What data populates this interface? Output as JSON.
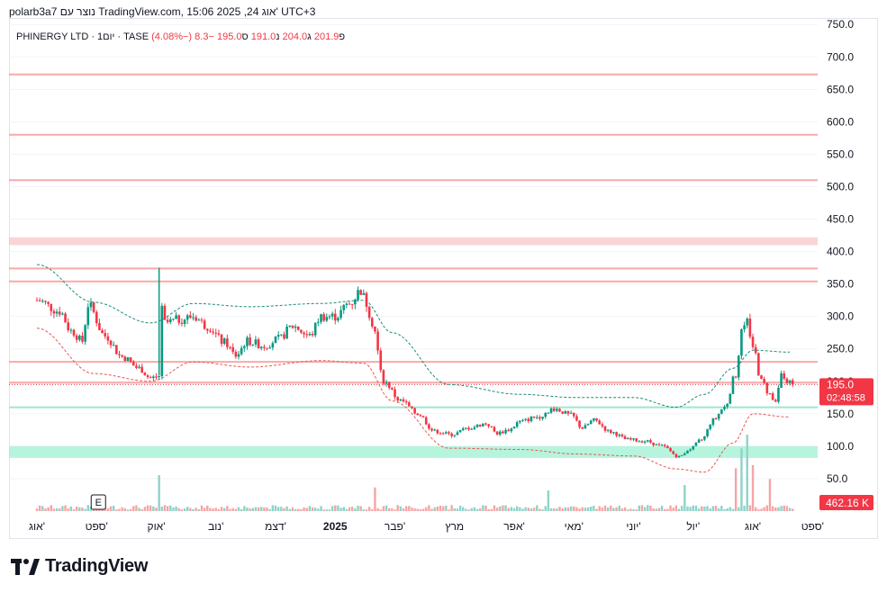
{
  "header": {
    "text": "polarb3a7 נוצר עם TradingView.com, 15:06 2025 ,24 אוג' UTC+3"
  },
  "legend": {
    "symbol": "PHINERGY LTD · 1יום · TASE",
    "open_label": "פ",
    "open_value": "201.9",
    "high_label": "ג",
    "high_value": "204.0",
    "low_label": "נ",
    "low_value": "191.0",
    "close_label": "ס",
    "close_value": "195.0",
    "change": "−8.3 (−4.08%)"
  },
  "price_badge": {
    "price": "195.0",
    "countdown": "02:48:58"
  },
  "volume_badge": {
    "value": "462.16 K"
  },
  "event_marker": {
    "label": "E"
  },
  "footer": {
    "brand": "TradingView"
  },
  "colors": {
    "up": "#089981",
    "down": "#f23645",
    "grid": "#f0f3fa",
    "resistance_line": "#f7a9a9",
    "resistance_band": "#f7b9b9",
    "support_line": "#9ce8cf",
    "support_band": "#9ff0d2",
    "envelope_upper": "#1e8a7a",
    "envelope_lower": "#e8584f",
    "volume_up": "#8fd3c8",
    "volume_down": "#f5a5a5"
  },
  "chart_data": {
    "type": "candlestick",
    "y_ticks": [
      "50.0",
      "100.0",
      "150.0",
      "200.0",
      "250.0",
      "300.0",
      "350.0",
      "400.0",
      "450.0",
      "500.0",
      "550.0",
      "600.0",
      "650.0",
      "700.0",
      "750.0"
    ],
    "ylim": [
      0,
      760
    ],
    "x_labels": [
      "אוג'",
      "ספט'",
      "אוק'",
      "נוב'",
      "דצמ'",
      "2025",
      "פבר'",
      "מרץ",
      "אפר'",
      "מאי'",
      "יוני'",
      "יול'",
      "אוג'",
      "ספט'"
    ],
    "x_label_day": [
      0,
      21,
      42,
      63,
      84,
      105,
      126,
      147,
      168,
      189,
      210,
      231,
      252,
      273
    ],
    "last_price": 195.0,
    "horizontal_levels": {
      "resistance_lines": [
        673,
        580,
        510,
        374,
        354,
        230,
        198
      ],
      "resistance_band": [
        410,
        422
      ],
      "support_lines": [
        160
      ],
      "support_band": [
        82,
        100
      ]
    },
    "price_path_days": [
      0,
      8,
      12,
      16,
      18,
      24,
      30,
      36,
      40,
      43,
      44,
      45,
      50,
      55,
      60,
      66,
      70,
      74,
      80,
      85,
      90,
      96,
      100,
      105,
      110,
      114,
      116,
      118,
      122,
      128,
      134,
      140,
      146,
      152,
      158,
      162,
      166,
      170,
      176,
      182,
      188,
      192,
      196,
      202,
      208,
      214,
      220,
      226,
      230,
      234,
      238,
      242,
      246,
      248,
      250,
      252,
      255,
      258,
      260,
      262,
      264,
      266
    ],
    "price_path_values": [
      325,
      308,
      278,
      262,
      318,
      270,
      238,
      220,
      205,
      208,
      310,
      290,
      295,
      300,
      285,
      260,
      240,
      262,
      255,
      265,
      285,
      270,
      300,
      300,
      320,
      340,
      320,
      290,
      200,
      170,
      150,
      123,
      118,
      128,
      135,
      120,
      125,
      138,
      145,
      158,
      148,
      128,
      140,
      122,
      110,
      108,
      100,
      84,
      96,
      110,
      140,
      160,
      210,
      280,
      290,
      255,
      200,
      180,
      165,
      210,
      200,
      195
    ],
    "envelope_upper_days": [
      0,
      20,
      40,
      55,
      75,
      100,
      115,
      125,
      145,
      170,
      190,
      210,
      225,
      235,
      245,
      252,
      265
    ],
    "envelope_upper_values": [
      380,
      322,
      290,
      320,
      315,
      320,
      325,
      275,
      195,
      180,
      175,
      175,
      160,
      180,
      220,
      248,
      245
    ],
    "envelope_lower_days": [
      0,
      20,
      40,
      55,
      75,
      100,
      115,
      125,
      145,
      170,
      190,
      210,
      225,
      235,
      245,
      252,
      265
    ],
    "envelope_lower_values": [
      282,
      212,
      200,
      230,
      222,
      232,
      228,
      170,
      97,
      95,
      88,
      85,
      65,
      60,
      105,
      150,
      145
    ],
    "volume_spikes": [
      {
        "day": 43,
        "k": 470
      },
      {
        "day": 119,
        "k": 310
      },
      {
        "day": 180,
        "k": 270
      },
      {
        "day": 228,
        "k": 340
      },
      {
        "day": 246,
        "k": 560
      },
      {
        "day": 248,
        "k": 820
      },
      {
        "day": 250,
        "k": 1000
      },
      {
        "day": 252,
        "k": 600
      },
      {
        "day": 258,
        "k": 420
      }
    ]
  }
}
